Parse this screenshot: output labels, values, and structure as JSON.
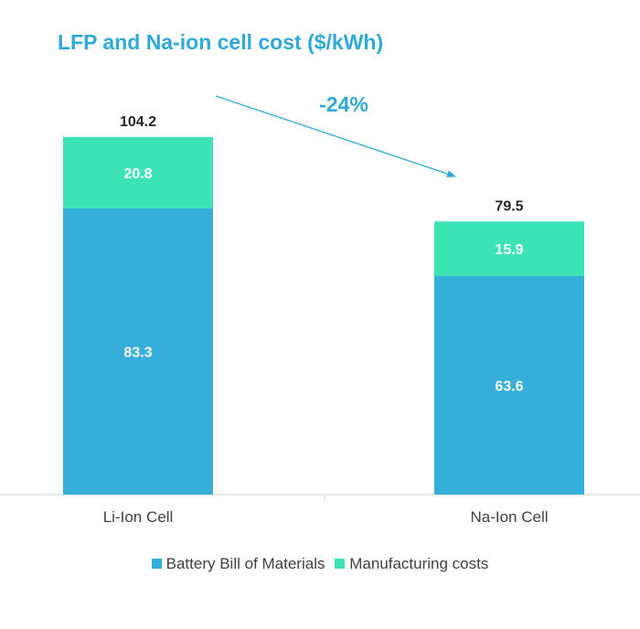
{
  "chart_data": {
    "type": "bar",
    "stacked": true,
    "title": "LFP and Na-ion cell cost ($/kWh)",
    "categories": [
      "Li-Ion Cell",
      "Na-Ion Cell"
    ],
    "series": [
      {
        "name": "Battery Bill of Materials",
        "values": [
          83.3,
          63.6
        ],
        "labels": [
          "83.3",
          "63.6"
        ],
        "color": "#35afd9"
      },
      {
        "name": "Manufacturing costs",
        "values": [
          20.8,
          15.9
        ],
        "labels": [
          "20.8",
          "15.9"
        ],
        "color": "#3ce3b5"
      }
    ],
    "totals": [
      "104.2",
      "79.5"
    ],
    "annotation": {
      "text": "-24%",
      "color": "#2fa9da"
    },
    "xlabel": "",
    "ylabel": "",
    "ylim": [
      0,
      128
    ],
    "legend": "bottom",
    "grid": false
  }
}
